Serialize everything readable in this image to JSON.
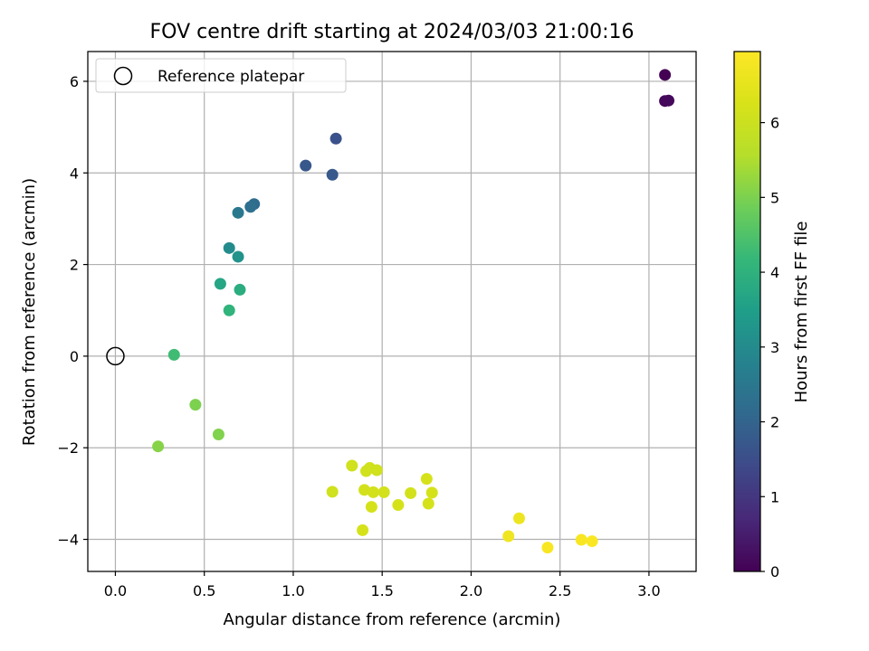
{
  "chart_data": {
    "type": "scatter",
    "title": "FOV centre drift starting at 2024/03/03 21:00:16",
    "xlabel": "Angular distance from reference (arcmin)",
    "ylabel": "Rotation from reference (arcmin)",
    "xlim": [
      -0.155,
      3.265
    ],
    "ylim": [
      -4.7,
      6.65
    ],
    "xticks": [
      0.0,
      0.5,
      1.0,
      1.5,
      2.0,
      2.5,
      3.0
    ],
    "xtick_labels": [
      "0.0",
      "0.5",
      "1.0",
      "1.5",
      "2.0",
      "2.5",
      "3.0"
    ],
    "yticks": [
      -4,
      -2,
      0,
      2,
      4,
      6
    ],
    "ytick_labels": [
      "−4",
      "−2",
      "0",
      "2",
      "4",
      "6"
    ],
    "grid": true,
    "legend": {
      "position": "top-left",
      "entries": [
        "Reference platepar"
      ]
    },
    "reference_point": {
      "x": 0.0,
      "y": 0.0
    },
    "colorbar": {
      "label": "Hours from first FF file",
      "colormap": "viridis",
      "range": [
        0,
        6.95
      ],
      "ticks": [
        0,
        1,
        2,
        3,
        4,
        5,
        6
      ],
      "tick_labels": [
        "0",
        "1",
        "2",
        "3",
        "4",
        "5",
        "6"
      ]
    },
    "series": [
      {
        "points": [
          {
            "x": 3.09,
            "y": 6.14,
            "c": 0.0
          },
          {
            "x": 3.09,
            "y": 5.57,
            "c": 0.1
          },
          {
            "x": 3.11,
            "y": 5.58,
            "c": 0.15
          },
          {
            "x": 1.24,
            "y": 4.75,
            "c": 1.6
          },
          {
            "x": 1.07,
            "y": 4.16,
            "c": 1.7
          },
          {
            "x": 1.22,
            "y": 3.96,
            "c": 1.75
          },
          {
            "x": 0.78,
            "y": 3.32,
            "c": 2.2
          },
          {
            "x": 0.76,
            "y": 3.26,
            "c": 2.3
          },
          {
            "x": 0.69,
            "y": 3.13,
            "c": 2.5
          },
          {
            "x": 0.64,
            "y": 2.36,
            "c": 3.0
          },
          {
            "x": 0.69,
            "y": 2.17,
            "c": 3.2
          },
          {
            "x": 0.59,
            "y": 1.58,
            "c": 3.7
          },
          {
            "x": 0.7,
            "y": 1.45,
            "c": 3.9
          },
          {
            "x": 0.64,
            "y": 1.0,
            "c": 4.05
          },
          {
            "x": 0.33,
            "y": 0.03,
            "c": 4.3
          },
          {
            "x": 0.45,
            "y": -1.06,
            "c": 5.0
          },
          {
            "x": 0.58,
            "y": -1.71,
            "c": 5.05
          },
          {
            "x": 0.24,
            "y": -1.97,
            "c": 5.1
          },
          {
            "x": 1.22,
            "y": -2.96,
            "c": 6.1
          },
          {
            "x": 1.33,
            "y": -2.39,
            "c": 6.1
          },
          {
            "x": 1.41,
            "y": -2.51,
            "c": 6.1
          },
          {
            "x": 1.43,
            "y": -2.44,
            "c": 6.1
          },
          {
            "x": 1.47,
            "y": -2.49,
            "c": 6.1
          },
          {
            "x": 1.4,
            "y": -2.92,
            "c": 6.15
          },
          {
            "x": 1.45,
            "y": -2.97,
            "c": 6.15
          },
          {
            "x": 1.51,
            "y": -2.97,
            "c": 6.15
          },
          {
            "x": 1.66,
            "y": -2.99,
            "c": 6.15
          },
          {
            "x": 1.75,
            "y": -2.68,
            "c": 6.2
          },
          {
            "x": 1.78,
            "y": -2.98,
            "c": 6.2
          },
          {
            "x": 1.44,
            "y": -3.29,
            "c": 6.2
          },
          {
            "x": 1.59,
            "y": -3.25,
            "c": 6.2
          },
          {
            "x": 1.76,
            "y": -3.22,
            "c": 6.2
          },
          {
            "x": 1.39,
            "y": -3.8,
            "c": 6.2
          },
          {
            "x": 2.27,
            "y": -3.54,
            "c": 6.65
          },
          {
            "x": 2.21,
            "y": -3.93,
            "c": 6.7
          },
          {
            "x": 2.43,
            "y": -4.18,
            "c": 6.85
          },
          {
            "x": 2.62,
            "y": -4.01,
            "c": 6.85
          },
          {
            "x": 2.68,
            "y": -4.04,
            "c": 6.9
          }
        ]
      }
    ]
  }
}
